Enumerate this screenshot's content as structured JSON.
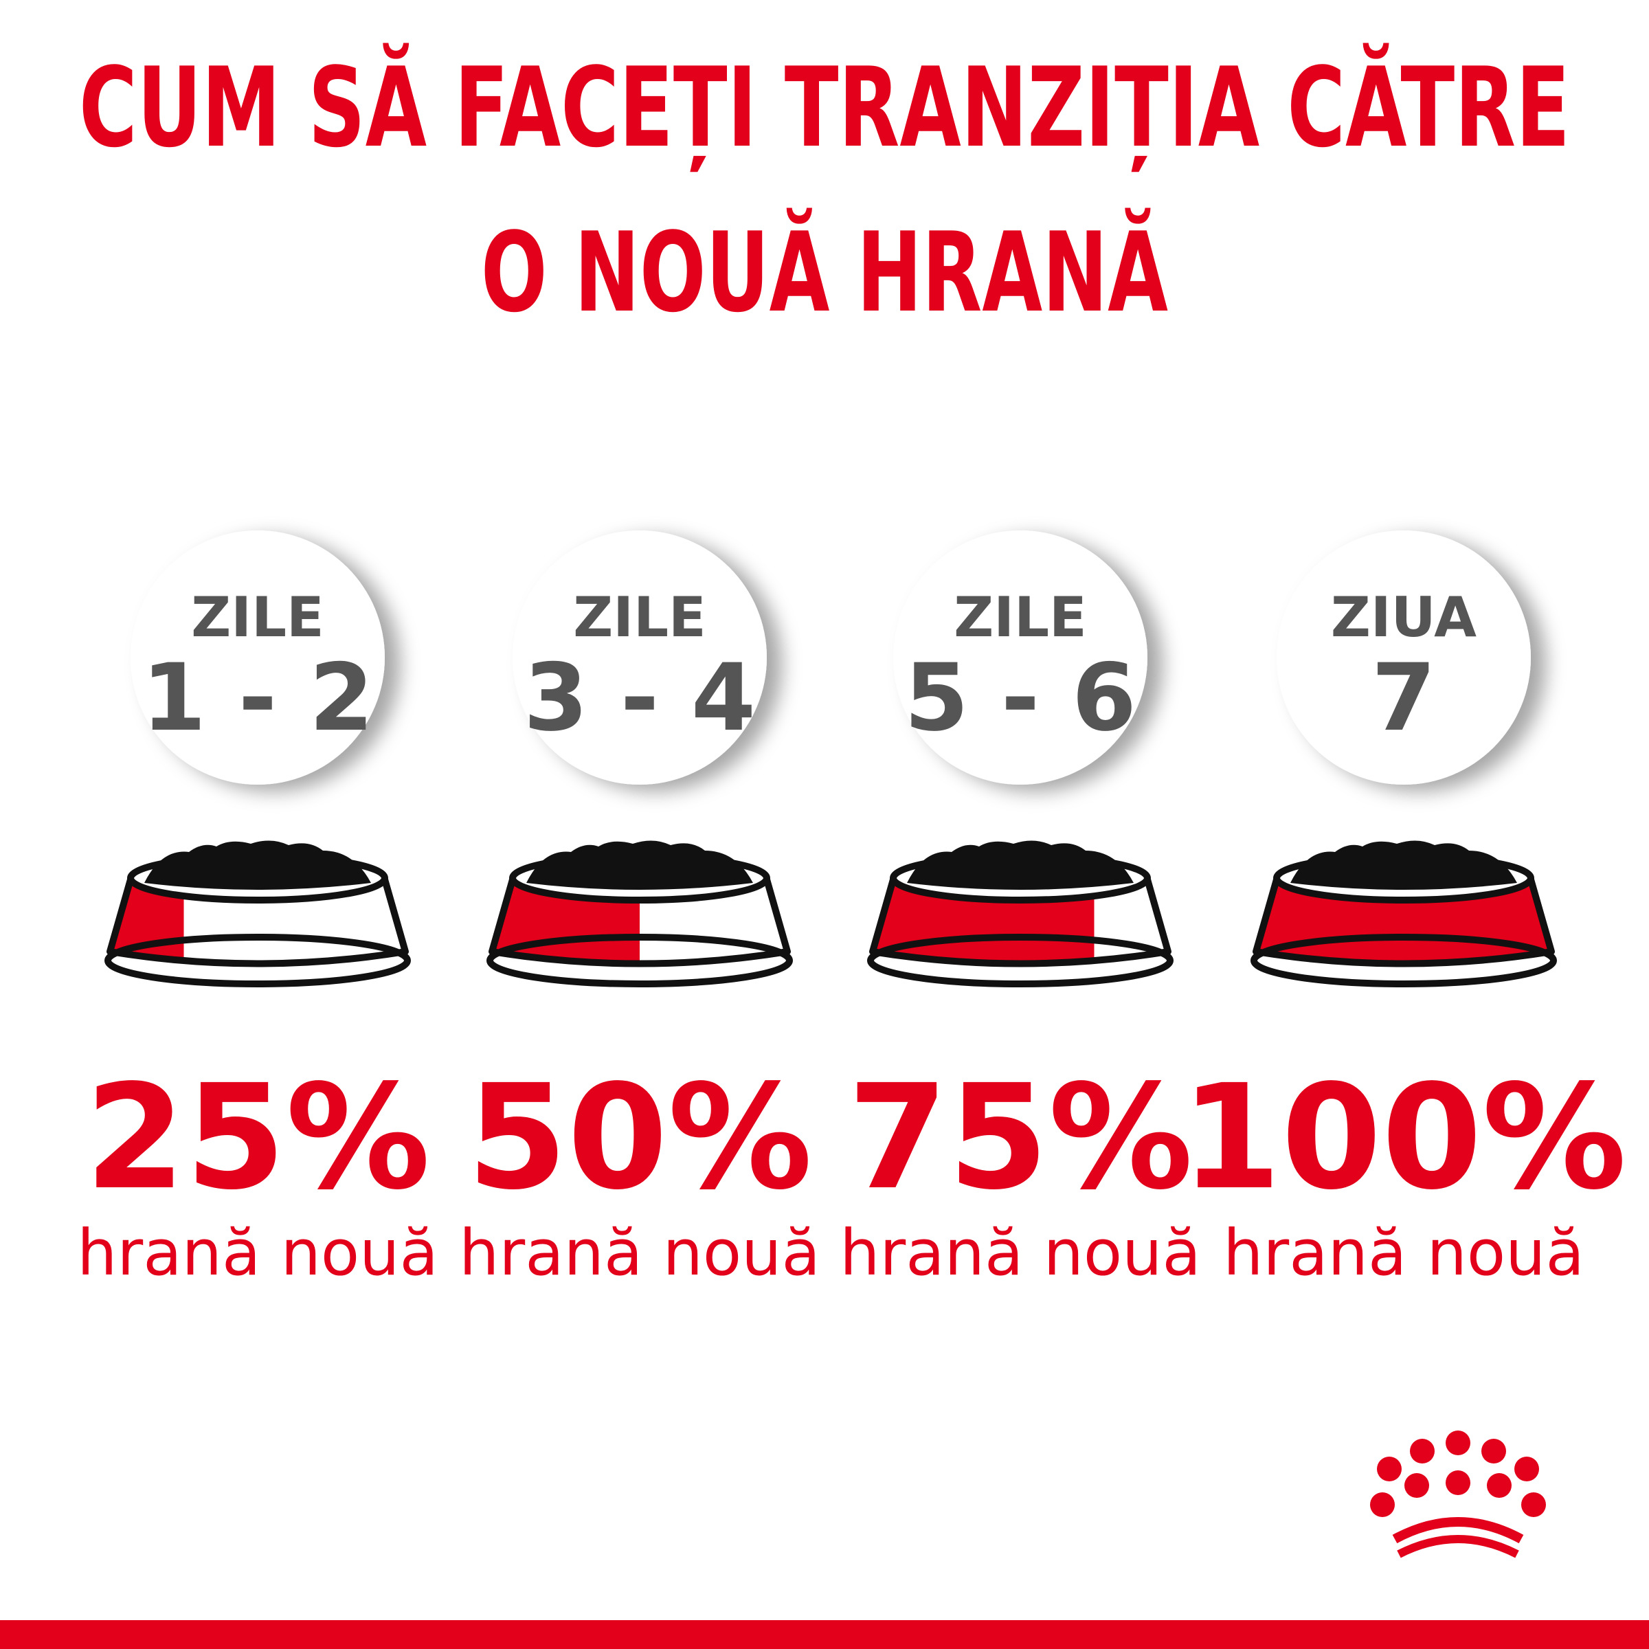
{
  "title": {
    "lines": [
      "CUM SĂ FACEȚI TRANZIȚIA CĂTRE",
      "O NOUĂ HRANĂ"
    ]
  },
  "steps": [
    {
      "label": "ZILE",
      "range": "1 - 2",
      "percent": {
        "value": 25,
        "label": "25%"
      },
      "caption": "hrană nouă"
    },
    {
      "label": "ZILE",
      "range": "3 - 4",
      "percent": {
        "value": 50,
        "label": "50%"
      },
      "caption": "hrană nouă"
    },
    {
      "label": "ZILE",
      "range": "5 - 6",
      "percent": {
        "value": 75,
        "label": "75%"
      },
      "caption": "hrană nouă"
    },
    {
      "label": "ZIUA",
      "range": "7",
      "percent": {
        "value": 100,
        "label": "100%"
      },
      "caption": "hrană nouă"
    }
  ]
}
